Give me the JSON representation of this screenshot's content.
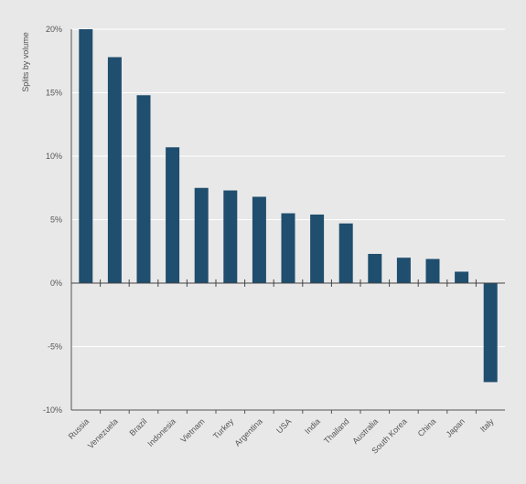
{
  "chart_data": {
    "type": "bar",
    "ylabel": "Splits by volume",
    "categories": [
      "Russia",
      "Venezuela",
      "Brazil",
      "Indonesia",
      "Vietnam",
      "Turkey",
      "Argentina",
      "USA",
      "India",
      "Thailand",
      "Australia",
      "South Korea",
      "China",
      "Japan",
      "Italy"
    ],
    "values": [
      20.0,
      17.8,
      14.8,
      10.7,
      7.5,
      7.3,
      6.8,
      5.5,
      5.4,
      4.7,
      2.3,
      2.0,
      1.9,
      0.9,
      -7.8
    ],
    "ylim": [
      -10,
      20
    ],
    "yticks": [
      20,
      15,
      10,
      5,
      0,
      -5,
      -10
    ],
    "ytick_labels": [
      "20%",
      "15%",
      "10%",
      "5%",
      "0%",
      "-5%",
      "-10%"
    ],
    "grid": true,
    "bar_color": "#1f4e6e",
    "grid_color": "#ffffff",
    "background_color": "#e8e8e8"
  }
}
